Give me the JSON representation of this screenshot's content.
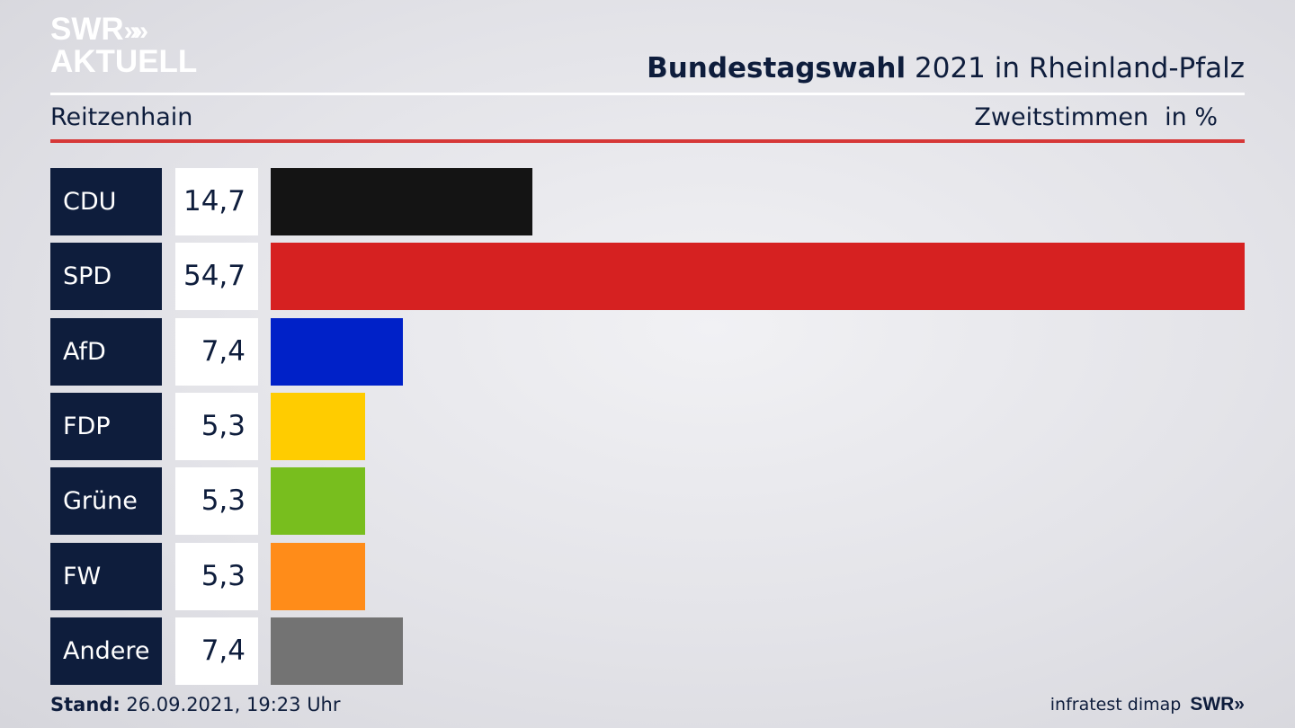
{
  "header": {
    "logo_line1": "SWR",
    "logo_chevrons": "»",
    "logo_line2": "AKTUELL",
    "title_bold": "Bundestagswahl",
    "title_rest": "2021 in Rheinland-Pfalz",
    "region": "Reitzenhain",
    "metric": "Zweitstimmen",
    "unit": "in %"
  },
  "chart_data": {
    "type": "bar",
    "orientation": "horizontal",
    "categories": [
      "CDU",
      "SPD",
      "AfD",
      "FDP",
      "Grüne",
      "FW",
      "Andere"
    ],
    "values": [
      14.7,
      54.7,
      7.4,
      5.3,
      5.3,
      5.3,
      7.4
    ],
    "value_labels": [
      "14,7",
      "54,7",
      "7,4",
      "5,3",
      "5,3",
      "5,3",
      "7,4"
    ],
    "colors": [
      "#141414",
      "#d62121",
      "#0021c8",
      "#ffcc00",
      "#78be1e",
      "#ff8c19",
      "#737373"
    ],
    "title": "Bundestagswahl 2021 in Rheinland-Pfalz"
  },
  "footer": {
    "stand_label": "Stand:",
    "stand_value": "26.09.2021, 19:23 Uhr",
    "source": "infratest dimap",
    "brand": "SWR»"
  }
}
